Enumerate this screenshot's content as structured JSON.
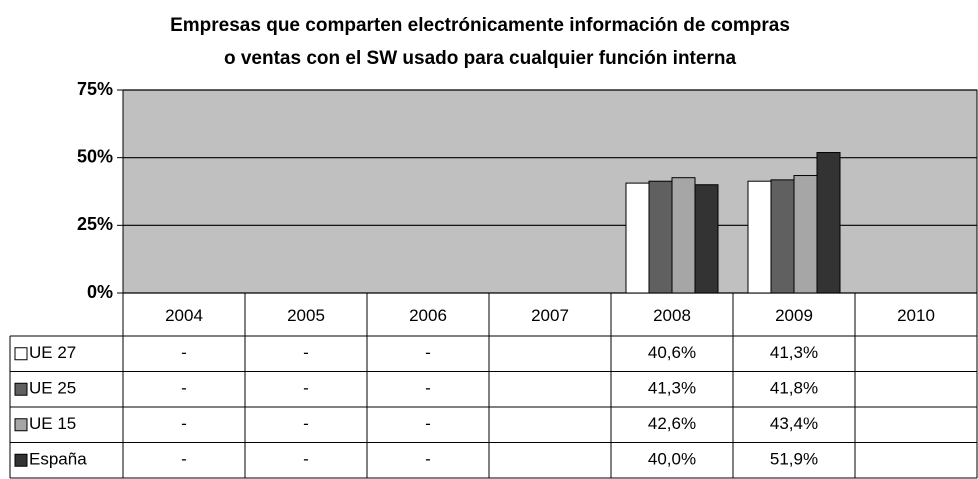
{
  "chart_data": {
    "type": "bar",
    "title": [
      "Empresas que comparten electrónicamente información de compras",
      "o ventas con el SW usado para cualquier función interna"
    ],
    "categories": [
      "2004",
      "2005",
      "2006",
      "2007",
      "2008",
      "2009",
      "2010"
    ],
    "series": [
      {
        "name": "UE 27",
        "color": "#ffffff",
        "values": [
          null,
          null,
          null,
          null,
          40.6,
          41.3,
          null
        ],
        "value_labels": [
          "-",
          "-",
          "-",
          null,
          "40,6%",
          "41,3%",
          null
        ]
      },
      {
        "name": "UE 25",
        "color": "#606060",
        "values": [
          null,
          null,
          null,
          null,
          41.3,
          41.8,
          null
        ],
        "value_labels": [
          "-",
          "-",
          "-",
          null,
          "41,3%",
          "41,8%",
          null
        ]
      },
      {
        "name": "UE 15",
        "color": "#a6a6a6",
        "values": [
          null,
          null,
          null,
          null,
          42.6,
          43.4,
          null
        ],
        "value_labels": [
          "-",
          "-",
          "-",
          null,
          "42,6%",
          "43,4%",
          null
        ]
      },
      {
        "name": "España",
        "color": "#333333",
        "values": [
          null,
          null,
          null,
          null,
          40.0,
          51.9,
          null
        ],
        "value_labels": [
          "-",
          "-",
          "-",
          null,
          "40,0%",
          "51,9%",
          null
        ]
      }
    ],
    "ylim": [
      0,
      75
    ],
    "yticks": [
      {
        "value": 0,
        "label": "0%"
      },
      {
        "value": 25,
        "label": "25%"
      },
      {
        "value": 50,
        "label": "50%"
      },
      {
        "value": 75,
        "label": "75%"
      }
    ],
    "grid": true
  }
}
